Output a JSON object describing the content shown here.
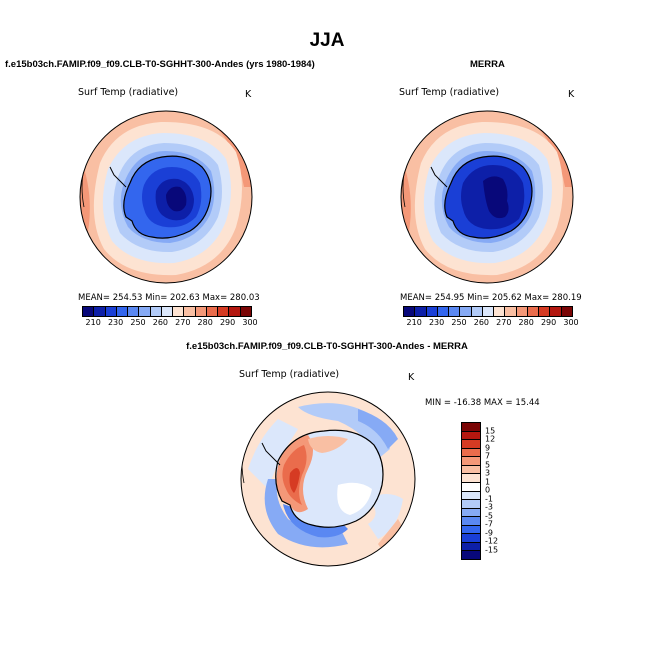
{
  "title": "JJA",
  "colors": {
    "abs_scale": [
      "#08087a",
      "#0d1fa8",
      "#1a3fd6",
      "#3366ee",
      "#5a88f2",
      "#86aaf5",
      "#b2cbf8",
      "#dbe7fb",
      "#fde3d2",
      "#f9bfa3",
      "#f49878",
      "#ea6c4c",
      "#d63b23",
      "#b3170f",
      "#7a0505"
    ],
    "diff_scale": [
      "#7a0505",
      "#b3170f",
      "#d63b23",
      "#ea6c4c",
      "#f49878",
      "#f9bfa3",
      "#fde3d2",
      "#ffffff",
      "#dbe7fb",
      "#b2cbf8",
      "#86aaf5",
      "#5a88f2",
      "#3366ee",
      "#1a3fd6",
      "#0d1fa8",
      "#08087a"
    ]
  },
  "panels": {
    "model": {
      "title": "f.e15b03ch.FAMIP.f09_f09.CLB-T0-SGHHT-300-Andes (yrs 1980-1984)",
      "var": "Surf Temp (radiative)",
      "units": "K",
      "stats": "MEAN= 254.53   Min= 202.63   Max= 280.03"
    },
    "obs": {
      "title": "MERRA",
      "var": "Surf Temp (radiative)",
      "units": "K",
      "stats": "MEAN= 254.95   Min= 205.62   Max= 280.19"
    },
    "diff": {
      "title": "f.e15b03ch.FAMIP.f09_f09.CLB-T0-SGHHT-300-Andes - MERRA",
      "var": "Surf Temp (radiative)",
      "units": "K",
      "stats": "MIN = -16.38  MAX =  15.44"
    }
  },
  "colorbar_abs_ticks": [
    "210",
    "230",
    "250",
    "260",
    "270",
    "280",
    "290",
    "300"
  ],
  "colorbar_diff_ticks": [
    "15",
    "12",
    "9",
    "7",
    "5",
    "3",
    "1",
    "0",
    "-1",
    "-3",
    "-5",
    "-7",
    "-9",
    "-12",
    "-15"
  ]
}
